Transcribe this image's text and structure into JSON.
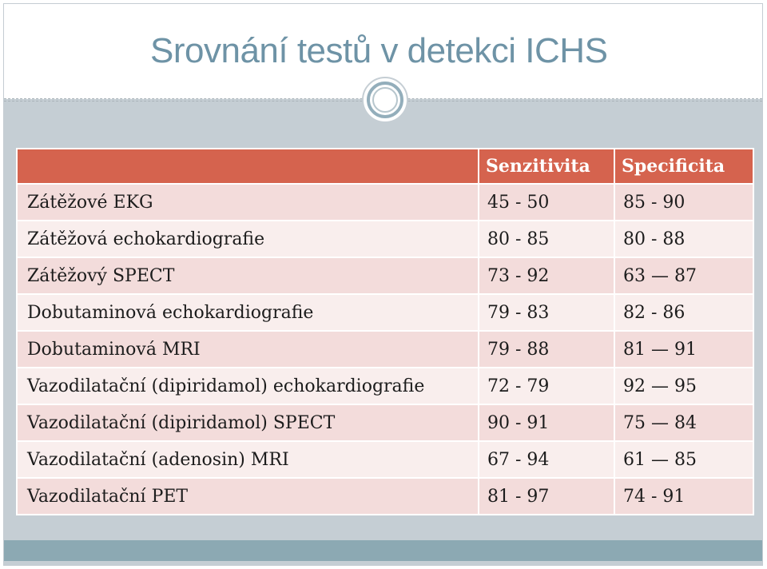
{
  "slide": {
    "title": "Srovnání testů v detekci ICHS"
  },
  "table": {
    "headers": [
      "",
      "Senzitivita",
      "Specificita"
    ],
    "rows": [
      [
        "Zátěžové EKG",
        "45 - 50",
        "85 - 90"
      ],
      [
        "Zátěžová echokardiografie",
        "80 - 85",
        "80 - 88"
      ],
      [
        "Zátěžový SPECT",
        "73 - 92",
        "63 — 87"
      ],
      [
        "Dobutaminová echokardiografie",
        "79 - 83",
        "82 - 86"
      ],
      [
        "Dobutaminová MRI",
        "79 - 88",
        "81 — 91"
      ],
      [
        "Vazodilatační (dipiridamol) echokardiografie",
        "72 - 79",
        "92 — 95"
      ],
      [
        "Vazodilatační (dipiridamol) SPECT",
        "90 - 91",
        "75 — 84"
      ],
      [
        "Vazodilatační (adenosin) MRI",
        "67 - 94",
        "61 — 85"
      ],
      [
        "Vazodilatační PET",
        "81 - 97",
        "74 - 91"
      ]
    ]
  },
  "colors": {
    "title": "#6e93a6",
    "header_fill": "#d5634e",
    "row_dark": "#f3dcdb",
    "row_light": "#f9eeed",
    "background": "#c5ced4",
    "footer": "#8ca9b3"
  },
  "icons": {
    "emblem": "concentric-circle-emblem-icon"
  }
}
